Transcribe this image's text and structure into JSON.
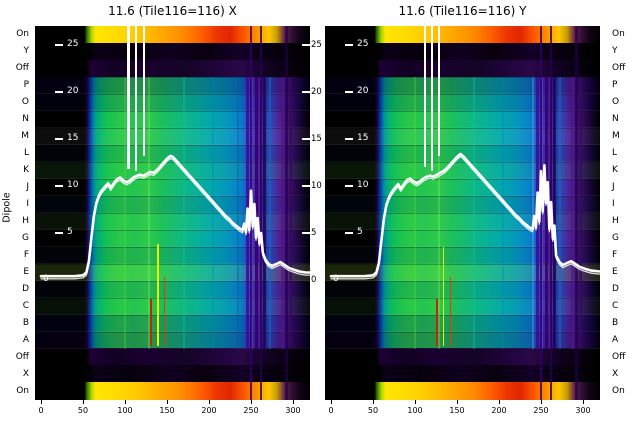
{
  "figure": {
    "background": "#ffffff"
  },
  "colors": {
    "curve": "#ffffff",
    "text": "#000000",
    "tick_inside": "#ffffff"
  },
  "axis": {
    "ylabel": "Dipole",
    "dipole_labels": [
      "On",
      "Y",
      "Off",
      "P",
      "O",
      "N",
      "M",
      "L",
      "K",
      "J",
      "I",
      "H",
      "G",
      "F",
      "E",
      "D",
      "C",
      "B",
      "A",
      "Off",
      "X",
      "On"
    ],
    "x_ticks": [
      0,
      50,
      100,
      150,
      200,
      250,
      300
    ],
    "y_ticks": [
      25,
      20,
      15,
      10,
      5,
      0
    ],
    "x_range": [
      0,
      320
    ],
    "y_range": [
      0,
      28
    ]
  },
  "heat_palette": {
    "main": [
      {
        "p": 0,
        "c": "#000000"
      },
      {
        "p": 18,
        "c": "#000000"
      },
      {
        "p": 19,
        "c": "#1c0038"
      },
      {
        "p": 20,
        "c": "#0038a8"
      },
      {
        "p": 21.5,
        "c": "#0090a0"
      },
      {
        "p": 23,
        "c": "#00b272"
      },
      {
        "p": 26,
        "c": "#14c254"
      },
      {
        "p": 31,
        "c": "#2ac846"
      },
      {
        "p": 36,
        "c": "#22c452"
      },
      {
        "p": 41,
        "c": "#2eca48"
      },
      {
        "p": 46,
        "c": "#1cc05a"
      },
      {
        "p": 52,
        "c": "#12ba7a"
      },
      {
        "p": 58,
        "c": "#08b296"
      },
      {
        "p": 64,
        "c": "#02a8ac"
      },
      {
        "p": 70,
        "c": "#0496be"
      },
      {
        "p": 74,
        "c": "#0884ca"
      },
      {
        "p": 77,
        "c": "#1462c6"
      },
      {
        "p": 79,
        "c": "#3240b2"
      },
      {
        "p": 81,
        "c": "#50189a"
      },
      {
        "p": 83,
        "c": "#2a2aa0"
      },
      {
        "p": 85,
        "c": "#1e52b6"
      },
      {
        "p": 87,
        "c": "#3c38a8"
      },
      {
        "p": 89,
        "c": "#521e92"
      },
      {
        "p": 91,
        "c": "#481880"
      },
      {
        "p": 93,
        "c": "#321060"
      },
      {
        "p": 95,
        "c": "#26084c"
      },
      {
        "p": 97,
        "c": "#14042c"
      },
      {
        "p": 100,
        "c": "#000000"
      }
    ],
    "on": [
      {
        "p": 0,
        "c": "#000000"
      },
      {
        "p": 18,
        "c": "#000000"
      },
      {
        "p": 19,
        "c": "#3a7a00"
      },
      {
        "p": 20.5,
        "c": "#aad400"
      },
      {
        "p": 22,
        "c": "#ffe600"
      },
      {
        "p": 30,
        "c": "#ffda00"
      },
      {
        "p": 38,
        "c": "#ffc600"
      },
      {
        "p": 46,
        "c": "#ffa800"
      },
      {
        "p": 54,
        "c": "#ff8a00"
      },
      {
        "p": 60,
        "c": "#ff6200"
      },
      {
        "p": 66,
        "c": "#ee3600"
      },
      {
        "p": 71,
        "c": "#e02600"
      },
      {
        "p": 76,
        "c": "#ff5800"
      },
      {
        "p": 81,
        "c": "#ff9400"
      },
      {
        "p": 85,
        "c": "#ffc600"
      },
      {
        "p": 88,
        "c": "#c89c00"
      },
      {
        "p": 90.5,
        "c": "#6a2a4a"
      },
      {
        "p": 93,
        "c": "#381038"
      },
      {
        "p": 96,
        "c": "#120416"
      },
      {
        "p": 100,
        "c": "#000000"
      }
    ],
    "off": [
      {
        "p": 0,
        "c": "#000000"
      },
      {
        "p": 19,
        "c": "#000000"
      },
      {
        "p": 20,
        "c": "#1c0034"
      },
      {
        "p": 30,
        "c": "#120022"
      },
      {
        "p": 40,
        "c": "#1a0030"
      },
      {
        "p": 55,
        "c": "#140426"
      },
      {
        "p": 65,
        "c": "#1e0438"
      },
      {
        "p": 75,
        "c": "#2a0848"
      },
      {
        "p": 82,
        "c": "#16032a"
      },
      {
        "p": 90,
        "c": "#0a0114"
      },
      {
        "p": 100,
        "c": "#000000"
      }
    ],
    "xy": [
      {
        "p": 0,
        "c": "#000000"
      },
      {
        "p": 20,
        "c": "#000000"
      },
      {
        "p": 22,
        "c": "#0c0018"
      },
      {
        "p": 35,
        "c": "#06000c"
      },
      {
        "p": 50,
        "c": "#100020"
      },
      {
        "p": 62,
        "c": "#08000e"
      },
      {
        "p": 75,
        "c": "#140028"
      },
      {
        "p": 82,
        "c": "#0a0014"
      },
      {
        "p": 100,
        "c": "#000000"
      }
    ],
    "row_tints": [
      "rgba(10,0,60,0.28)",
      "rgba(0,10,80,0.15)",
      null,
      "rgba(255,255,255,0.05)",
      "rgba(0,40,80,0.10)",
      "rgba(80,220,80,0.10)",
      null,
      "rgba(0,40,90,0.12)",
      "rgba(100,230,90,0.08)",
      null,
      "rgba(0,30,80,0.10)",
      "rgba(170,240,60,0.16)",
      "rgba(0,40,90,0.10)",
      "rgba(60,200,80,0.08)",
      "rgba(0,10,80,0.20)",
      "rgba(20,0,60,0.26)"
    ]
  },
  "chart_data": [
    {
      "type": "heatmap+line",
      "title": "11.6 (Tile116=116) X",
      "x_range": [
        0,
        320
      ],
      "curve": [
        [
          0,
          0.4
        ],
        [
          20,
          0.4
        ],
        [
          40,
          0.4
        ],
        [
          50,
          0.5
        ],
        [
          54,
          0.8
        ],
        [
          57,
          2.0
        ],
        [
          60,
          4.5
        ],
        [
          63,
          6.8
        ],
        [
          66,
          8.2
        ],
        [
          69,
          9.0
        ],
        [
          72,
          9.5
        ],
        [
          76,
          9.9
        ],
        [
          80,
          10.3
        ],
        [
          83,
          9.8
        ],
        [
          86,
          10.2
        ],
        [
          90,
          10.7
        ],
        [
          94,
          10.9
        ],
        [
          98,
          10.6
        ],
        [
          102,
          10.4
        ],
        [
          106,
          10.6
        ],
        [
          110,
          10.9
        ],
        [
          114,
          11.1
        ],
        [
          118,
          11.2
        ],
        [
          122,
          11.1
        ],
        [
          126,
          11.3
        ],
        [
          130,
          11.5
        ],
        [
          134,
          11.4
        ],
        [
          138,
          11.7
        ],
        [
          142,
          12.1
        ],
        [
          146,
          12.5
        ],
        [
          150,
          12.9
        ],
        [
          154,
          13.2
        ],
        [
          157,
          13.1
        ],
        [
          160,
          12.8
        ],
        [
          164,
          12.4
        ],
        [
          168,
          12.0
        ],
        [
          172,
          11.6
        ],
        [
          176,
          11.2
        ],
        [
          180,
          10.8
        ],
        [
          184,
          10.4
        ],
        [
          188,
          10.0
        ],
        [
          192,
          9.6
        ],
        [
          196,
          9.2
        ],
        [
          200,
          8.8
        ],
        [
          204,
          8.4
        ],
        [
          208,
          8.0
        ],
        [
          212,
          7.6
        ],
        [
          216,
          7.2
        ],
        [
          220,
          6.8
        ],
        [
          224,
          6.5
        ],
        [
          228,
          6.1
        ],
        [
          232,
          5.8
        ],
        [
          236,
          5.5
        ],
        [
          240,
          5.3
        ],
        [
          242,
          6.0
        ],
        [
          244,
          5.1
        ],
        [
          246,
          7.6
        ],
        [
          248,
          5.3
        ],
        [
          250,
          9.5
        ],
        [
          252,
          5.7
        ],
        [
          254,
          8.1
        ],
        [
          256,
          4.5
        ],
        [
          258,
          6.6
        ],
        [
          260,
          3.9
        ],
        [
          262,
          5.0
        ],
        [
          264,
          2.9
        ],
        [
          267,
          2.2
        ],
        [
          271,
          1.7
        ],
        [
          275,
          1.5
        ],
        [
          280,
          1.7
        ],
        [
          285,
          1.9
        ],
        [
          290,
          1.6
        ],
        [
          295,
          1.3
        ],
        [
          301,
          1.1
        ],
        [
          308,
          0.9
        ],
        [
          315,
          0.8
        ],
        [
          320,
          0.8
        ]
      ],
      "rfi_lines": [
        {
          "x": 104,
          "w": 3,
          "y_end": 11.8
        },
        {
          "x": 113,
          "w": 2.5,
          "y_end": 11.6
        },
        {
          "x": 122,
          "w": 2,
          "y_end": 13.2
        }
      ],
      "markers": [
        {
          "x": 139,
          "y1": 3.8,
          "y2": -7.0,
          "c": "#e8f000"
        },
        {
          "x": 147,
          "y1": 0.3,
          "y2": -7.0,
          "c": "#ff3000"
        },
        {
          "x": 131,
          "y1": -2.0,
          "y2": -7.0,
          "c": "#c02800"
        }
      ],
      "streaks": [
        {
          "x": 100,
          "w": 2,
          "c": "#50e050",
          "o": 0.3
        },
        {
          "x": 128,
          "w": 2,
          "c": "#90ff90",
          "o": 0.25
        },
        {
          "x": 170,
          "w": 2,
          "c": "#00d0a0",
          "o": 0.35
        },
        {
          "x": 205,
          "w": 2,
          "c": "#0080c8",
          "o": 0.3
        },
        {
          "x": 234,
          "w": 2,
          "c": "#006090",
          "o": 0.4
        },
        {
          "x": 246,
          "w": 3,
          "c": "#4c00a0",
          "o": 0.85
        },
        {
          "x": 251,
          "w": 2,
          "c": "#7030c8",
          "o": 0.8
        },
        {
          "x": 256,
          "w": 3,
          "c": "#360070",
          "o": 0.9
        },
        {
          "x": 261,
          "w": 2,
          "c": "#5020aa",
          "o": 0.85
        },
        {
          "x": 266,
          "w": 3,
          "c": "#28005c",
          "o": 0.9
        },
        {
          "x": 272,
          "w": 2,
          "c": "#3858c4",
          "o": 0.55
        },
        {
          "x": 288,
          "w": 4,
          "c": "#50148c",
          "o": 0.6
        },
        {
          "x": 297,
          "w": 3,
          "c": "#38085e",
          "o": 0.7
        },
        {
          "x": 250,
          "w": 2,
          "c": "#30006a",
          "o": 0.8,
          "full": true
        },
        {
          "x": 262,
          "w": 2,
          "c": "#260054",
          "o": 0.8,
          "full": true
        },
        {
          "x": 292,
          "w": 3,
          "c": "#20004a",
          "o": 0.7,
          "full": true
        }
      ]
    },
    {
      "type": "heatmap+line",
      "title": "11.6 (Tile116=116) Y",
      "x_range": [
        0,
        320
      ],
      "curve": [
        [
          0,
          0.4
        ],
        [
          20,
          0.4
        ],
        [
          40,
          0.4
        ],
        [
          50,
          0.5
        ],
        [
          54,
          0.8
        ],
        [
          57,
          1.8
        ],
        [
          60,
          4.2
        ],
        [
          63,
          6.5
        ],
        [
          66,
          8.0
        ],
        [
          69,
          8.8
        ],
        [
          72,
          9.3
        ],
        [
          76,
          9.8
        ],
        [
          80,
          10.2
        ],
        [
          83,
          9.7
        ],
        [
          86,
          10.1
        ],
        [
          90,
          10.6
        ],
        [
          94,
          10.8
        ],
        [
          98,
          10.5
        ],
        [
          102,
          10.3
        ],
        [
          106,
          10.5
        ],
        [
          110,
          10.8
        ],
        [
          114,
          11.0
        ],
        [
          118,
          11.1
        ],
        [
          122,
          11.0
        ],
        [
          126,
          11.2
        ],
        [
          130,
          11.4
        ],
        [
          134,
          11.6
        ],
        [
          138,
          11.9
        ],
        [
          142,
          12.3
        ],
        [
          146,
          12.7
        ],
        [
          150,
          13.1
        ],
        [
          154,
          13.4
        ],
        [
          157,
          13.2
        ],
        [
          160,
          12.9
        ],
        [
          164,
          12.5
        ],
        [
          168,
          12.1
        ],
        [
          172,
          11.7
        ],
        [
          176,
          11.3
        ],
        [
          180,
          10.9
        ],
        [
          184,
          10.5
        ],
        [
          188,
          10.1
        ],
        [
          192,
          9.7
        ],
        [
          196,
          9.3
        ],
        [
          200,
          8.9
        ],
        [
          204,
          8.5
        ],
        [
          208,
          8.1
        ],
        [
          212,
          7.7
        ],
        [
          216,
          7.3
        ],
        [
          220,
          6.9
        ],
        [
          224,
          6.6
        ],
        [
          228,
          6.2
        ],
        [
          232,
          5.9
        ],
        [
          236,
          5.6
        ],
        [
          240,
          5.4
        ],
        [
          242,
          6.8
        ],
        [
          244,
          5.6
        ],
        [
          246,
          9.3
        ],
        [
          248,
          6.2
        ],
        [
          250,
          11.6
        ],
        [
          252,
          7.3
        ],
        [
          254,
          12.2
        ],
        [
          256,
          8.2
        ],
        [
          258,
          10.4
        ],
        [
          260,
          5.4
        ],
        [
          262,
          8.3
        ],
        [
          264,
          4.4
        ],
        [
          266,
          5.8
        ],
        [
          268,
          2.6
        ],
        [
          272,
          1.9
        ],
        [
          276,
          1.6
        ],
        [
          281,
          1.8
        ],
        [
          286,
          2.0
        ],
        [
          291,
          1.7
        ],
        [
          296,
          1.4
        ],
        [
          302,
          1.2
        ],
        [
          310,
          1.0
        ],
        [
          320,
          0.9
        ]
      ],
      "rfi_lines": [
        {
          "x": 112,
          "w": 2.5,
          "y_end": 12.0
        },
        {
          "x": 120,
          "w": 2.5,
          "y_end": 11.6
        },
        {
          "x": 128,
          "w": 2,
          "y_end": 13.2
        }
      ],
      "markers": [
        {
          "x": 134,
          "y1": 3.5,
          "y2": -7.0,
          "c": "#e8f000"
        },
        {
          "x": 142,
          "y1": 0.3,
          "y2": -7.0,
          "c": "#ff3000"
        },
        {
          "x": 126,
          "y1": -2.0,
          "y2": -7.0,
          "c": "#c02800"
        }
      ],
      "streaks": [
        {
          "x": 100,
          "w": 2,
          "c": "#50e050",
          "o": 0.3
        },
        {
          "x": 128,
          "w": 2,
          "c": "#90ff90",
          "o": 0.25
        },
        {
          "x": 170,
          "w": 2,
          "c": "#00d0a0",
          "o": 0.35
        },
        {
          "x": 205,
          "w": 2,
          "c": "#0080c8",
          "o": 0.3
        },
        {
          "x": 240,
          "w": 2,
          "c": "#80c0ff",
          "o": 0.3
        },
        {
          "x": 246,
          "w": 3,
          "c": "#4c00a0",
          "o": 0.85
        },
        {
          "x": 251,
          "w": 2,
          "c": "#7030c8",
          "o": 0.8
        },
        {
          "x": 256,
          "w": 3,
          "c": "#360070",
          "o": 0.9
        },
        {
          "x": 261,
          "w": 2,
          "c": "#5020aa",
          "o": 0.85
        },
        {
          "x": 266,
          "w": 3,
          "c": "#28005c",
          "o": 0.9
        },
        {
          "x": 272,
          "w": 2,
          "c": "#3858c4",
          "o": 0.55
        },
        {
          "x": 288,
          "w": 4,
          "c": "#50148c",
          "o": 0.6
        },
        {
          "x": 297,
          "w": 3,
          "c": "#38085e",
          "o": 0.7
        },
        {
          "x": 250,
          "w": 2,
          "c": "#30006a",
          "o": 0.8,
          "full": true
        },
        {
          "x": 262,
          "w": 2,
          "c": "#260054",
          "o": 0.8,
          "full": true
        },
        {
          "x": 292,
          "w": 3,
          "c": "#20004a",
          "o": 0.7,
          "full": true
        }
      ]
    }
  ]
}
